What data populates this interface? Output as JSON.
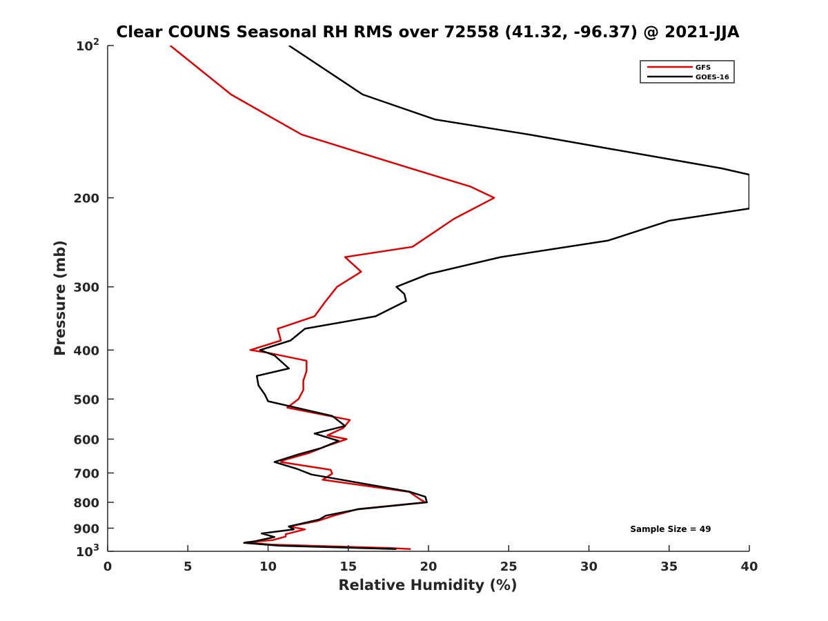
{
  "chart_data": {
    "type": "line",
    "title": "Clear COUNS Seasonal RH RMS over 72558 (41.32, -96.37) @ 2021-JJA",
    "xlabel": "Relative Humidity (%)",
    "ylabel": "Pressure (mb)",
    "xlim": [
      0,
      40
    ],
    "ylim": [
      100,
      1000
    ],
    "yscale": "log",
    "yreversed": true,
    "grid": false,
    "legend_position": "top-right",
    "x_ticks": [
      0,
      5,
      10,
      15,
      20,
      25,
      30,
      35,
      40
    ],
    "x_tick_labels": [
      "0",
      "5",
      "10",
      "15",
      "20",
      "25",
      "30",
      "35",
      "40"
    ],
    "y_ticks": [
      100,
      200,
      300,
      400,
      500,
      600,
      700,
      800,
      900,
      1000
    ],
    "y_tick_labels": [
      {
        "base": "10",
        "sup": "2"
      },
      {
        "base": "200",
        "sup": ""
      },
      {
        "base": "300",
        "sup": ""
      },
      {
        "base": "400",
        "sup": ""
      },
      {
        "base": "500",
        "sup": ""
      },
      {
        "base": "600",
        "sup": ""
      },
      {
        "base": "700",
        "sup": ""
      },
      {
        "base": "800",
        "sup": ""
      },
      {
        "base": "900",
        "sup": ""
      },
      {
        "base": "10",
        "sup": "3"
      }
    ],
    "annotation": "Sample Size = 49",
    "series": [
      {
        "name": "GFS",
        "color": "#e00000",
        "points": [
          [
            3.9,
            100
          ],
          [
            7.7,
            125
          ],
          [
            12.1,
            150
          ],
          [
            18.9,
            175
          ],
          [
            22.6,
            190
          ],
          [
            24.1,
            200
          ],
          [
            21.6,
            220
          ],
          [
            19.0,
            250
          ],
          [
            14.8,
            262
          ],
          [
            15.8,
            280
          ],
          [
            14.3,
            300
          ],
          [
            13.6,
            320
          ],
          [
            12.9,
            343
          ],
          [
            10.6,
            363
          ],
          [
            10.8,
            383
          ],
          [
            8.9,
            400
          ],
          [
            10.0,
            405
          ],
          [
            12.4,
            420
          ],
          [
            12.4,
            440
          ],
          [
            12.2,
            460
          ],
          [
            12.2,
            480
          ],
          [
            11.9,
            500
          ],
          [
            11.2,
            520
          ],
          [
            15.1,
            550
          ],
          [
            14.7,
            570
          ],
          [
            13.7,
            590
          ],
          [
            14.9,
            600
          ],
          [
            13.6,
            620
          ],
          [
            12.5,
            640
          ],
          [
            11.0,
            660
          ],
          [
            10.8,
            666
          ],
          [
            13.9,
            690
          ],
          [
            14.0,
            702
          ],
          [
            13.4,
            722
          ],
          [
            18.8,
            763
          ],
          [
            19.5,
            790
          ],
          [
            19.8,
            800
          ],
          [
            15.6,
            825
          ],
          [
            14.1,
            850
          ],
          [
            13.1,
            871
          ],
          [
            11.3,
            893
          ],
          [
            12.3,
            905
          ],
          [
            11.1,
            925
          ],
          [
            11.1,
            935
          ],
          [
            10.3,
            950
          ],
          [
            8.6,
            960
          ],
          [
            10.2,
            970
          ],
          [
            17.6,
            985
          ],
          [
            18.9,
            990
          ]
        ]
      },
      {
        "name": "GOES-16",
        "color": "#000000",
        "points": [
          [
            11.3,
            100
          ],
          [
            15.9,
            125
          ],
          [
            20.4,
            140
          ],
          [
            26.3,
            150
          ],
          [
            31.3,
            160
          ],
          [
            38.3,
            175
          ],
          [
            40.0,
            180
          ],
          [
            40.0,
            210
          ],
          [
            35.0,
            222
          ],
          [
            31.2,
            243
          ],
          [
            24.5,
            262
          ],
          [
            20.0,
            283
          ],
          [
            18.0,
            300
          ],
          [
            18.5,
            310
          ],
          [
            18.6,
            320
          ],
          [
            16.7,
            343
          ],
          [
            12.3,
            363
          ],
          [
            11.4,
            383
          ],
          [
            9.5,
            400
          ],
          [
            10.4,
            410
          ],
          [
            11.3,
            435
          ],
          [
            9.3,
            450
          ],
          [
            9.4,
            470
          ],
          [
            9.8,
            490
          ],
          [
            10.0,
            505
          ],
          [
            14.0,
            540
          ],
          [
            14.8,
            565
          ],
          [
            12.9,
            585
          ],
          [
            14.4,
            605
          ],
          [
            13.3,
            625
          ],
          [
            11.9,
            643
          ],
          [
            10.4,
            666
          ],
          [
            11.8,
            687
          ],
          [
            12.7,
            705
          ],
          [
            18.8,
            762
          ],
          [
            19.8,
            780
          ],
          [
            19.9,
            800
          ],
          [
            15.6,
            826
          ],
          [
            13.6,
            850
          ],
          [
            13.2,
            865
          ],
          [
            11.3,
            893
          ],
          [
            11.6,
            905
          ],
          [
            9.6,
            922
          ],
          [
            10.4,
            937
          ],
          [
            9.2,
            955
          ],
          [
            8.5,
            962
          ],
          [
            10.7,
            975
          ],
          [
            18.0,
            990
          ]
        ]
      }
    ]
  }
}
